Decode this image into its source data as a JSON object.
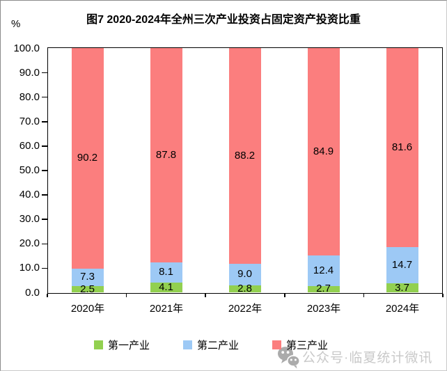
{
  "page": {
    "title": "图7 2020-2024年全州三次产业投资占固定资产投资比重",
    "y_unit": "%"
  },
  "chart_data": {
    "type": "bar",
    "subtype": "stacked-column",
    "title": "图7 2020-2024年全州三次产业投资占固定资产投资比重",
    "xlabel": "",
    "ylabel": "%",
    "ylim": [
      0,
      100
    ],
    "ytick_step": 10,
    "ytick_decimals": 1,
    "grid": false,
    "plot_background": "#ffffff",
    "legend_position": "bottom",
    "data_labels": true,
    "categories": [
      "2020年",
      "2021年",
      "2022年",
      "2023年",
      "2024年"
    ],
    "series": [
      {
        "name": "第一产业",
        "color": "#92D050",
        "values": [
          2.5,
          4.1,
          2.8,
          2.7,
          3.7
        ]
      },
      {
        "name": "第二产业",
        "color": "#9DC9F5",
        "values": [
          7.3,
          8.1,
          9.0,
          12.4,
          14.7
        ]
      },
      {
        "name": "第三产业",
        "color": "#FB7E7E",
        "values": [
          90.2,
          87.8,
          88.2,
          84.9,
          81.6
        ]
      }
    ]
  },
  "watermark": {
    "text": "公众号·临夏统计微讯",
    "icon": "wechat-icon"
  }
}
